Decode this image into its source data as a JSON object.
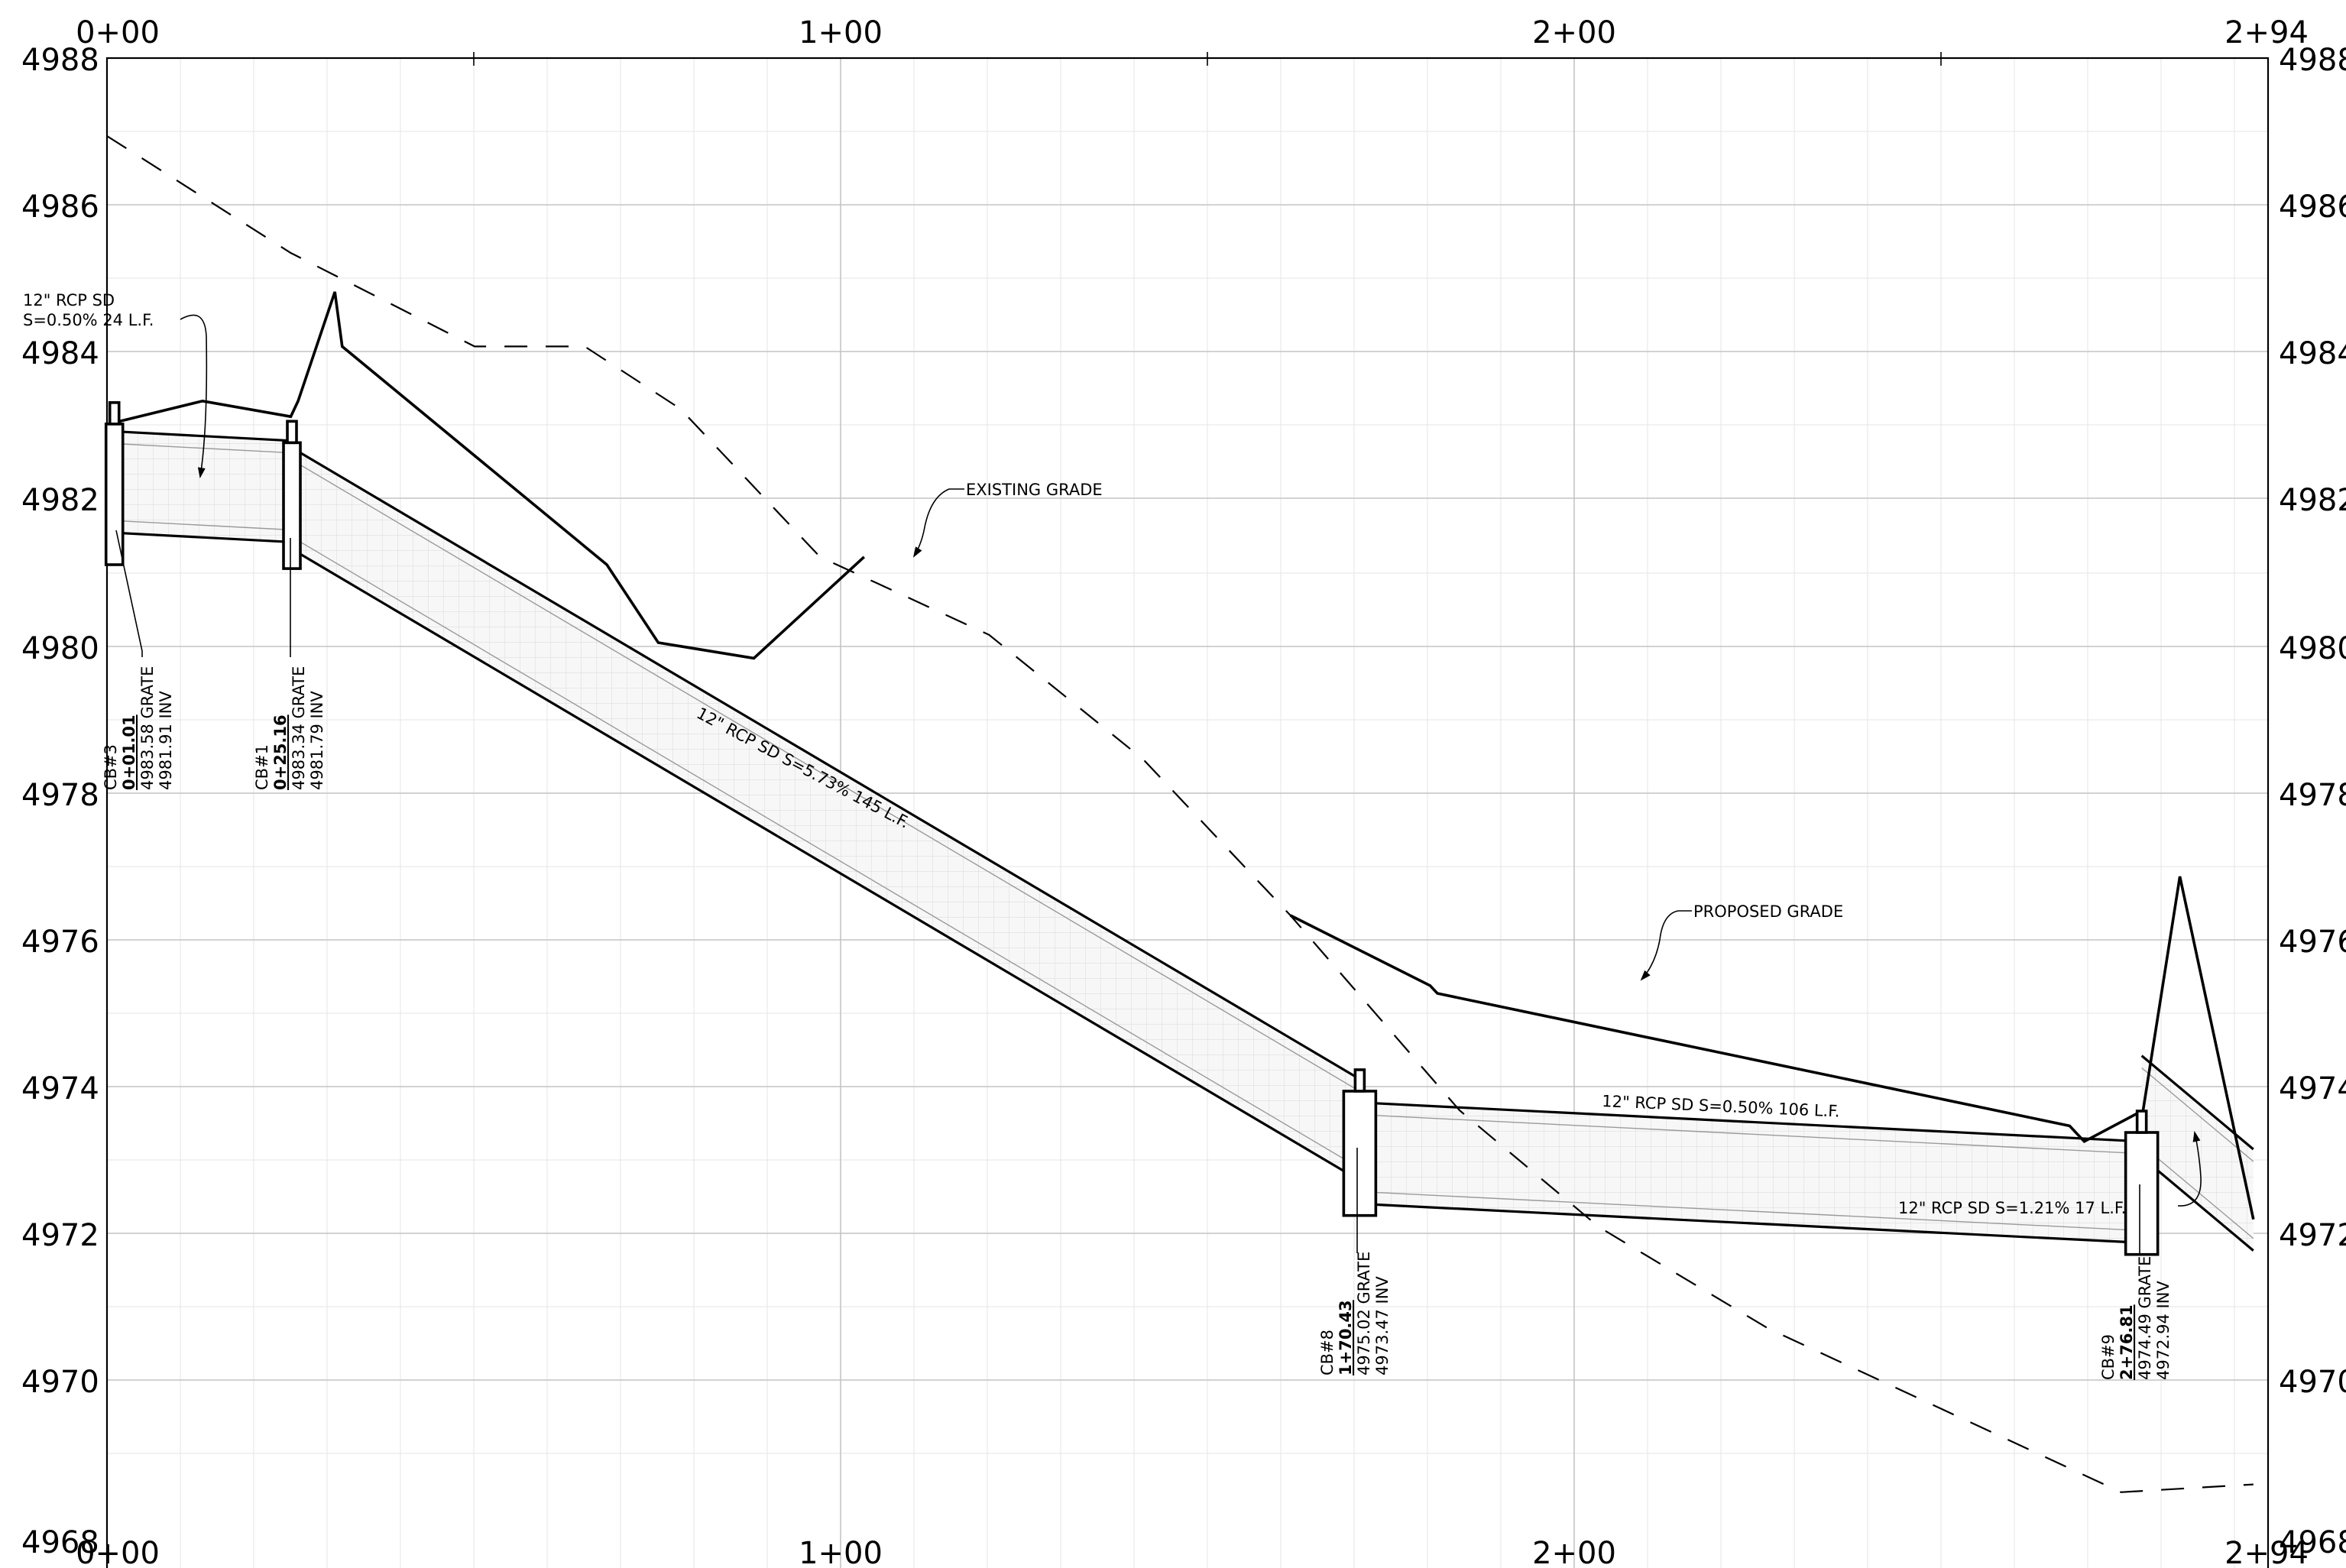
{
  "sheet": {
    "top_station_labels": [
      "0+00",
      "1+00",
      "2+00",
      "2+94"
    ],
    "bottom_station_labels": [
      "0+00",
      "1+00",
      "2+00",
      "2+94"
    ],
    "left_elevation_labels": [
      "4988",
      "4986",
      "4984",
      "4982",
      "4980",
      "4978",
      "4976",
      "4974",
      "4972",
      "4970",
      "4968"
    ],
    "right_elevation_labels": [
      "4988",
      "4986",
      "4984",
      "4982",
      "4980",
      "4978",
      "4976",
      "4974",
      "4972",
      "4970",
      "4968"
    ]
  },
  "profile": {
    "station_range": [
      0,
      294
    ],
    "elevation_range": [
      4968,
      4988
    ],
    "existing_grade_label": "EXISTING GRADE",
    "proposed_grade_label": "PROPOSED GRADE",
    "existing_grade": [
      [
        0,
        4987.0
      ],
      [
        25,
        4985.5
      ],
      [
        50,
        4984.3
      ],
      [
        65,
        4984.3
      ],
      [
        78,
        4983.5
      ],
      [
        97,
        4981.6
      ],
      [
        120,
        4980.6
      ],
      [
        141,
        4979.0
      ],
      [
        161,
        4977.0
      ],
      [
        184,
        4974.5
      ],
      [
        203,
        4973.0
      ],
      [
        226,
        4971.7
      ],
      [
        274,
        4969.6
      ],
      [
        292,
        4969.7
      ]
    ],
    "proposed_grade_a": [
      [
        0,
        4983.3
      ],
      [
        13,
        4983.6
      ],
      [
        25,
        4983.4
      ],
      [
        26,
        4983.6
      ],
      [
        31,
        4985.0
      ],
      [
        32,
        4984.3
      ],
      [
        68,
        4981.5
      ],
      [
        75,
        4980.5
      ],
      [
        88,
        4980.3
      ],
      [
        103,
        4981.6
      ]
    ],
    "proposed_grade_b": [
      [
        161,
        4977.0
      ],
      [
        180,
        4976.1
      ],
      [
        181,
        4976.0
      ],
      [
        267,
        4974.3
      ],
      [
        269,
        4974.1
      ],
      [
        277,
        4974.5
      ],
      [
        282,
        4977.5
      ],
      [
        292,
        4973.1
      ]
    ]
  },
  "pipes": [
    {
      "label": "12\" RCP SD\nS=0.50% 24 L.F.",
      "label_lines": [
        "12\" RCP SD",
        "S=0.50% 24 L.F."
      ],
      "from_station": 1.01,
      "to_station": 25.16,
      "invert_start": 4981.91,
      "invert_end": 4981.79
    },
    {
      "label": "12\" RCP SD S=5.73% 145 L.F.",
      "from_station": 25.16,
      "to_station": 170.43,
      "invert_start": 4981.7,
      "invert_end": 4973.6
    },
    {
      "label": "12\" RCP SD S=0.50% 106 L.F.",
      "from_station": 170.43,
      "to_station": 276.81,
      "invert_start": 4973.3,
      "invert_end": 4972.8
    },
    {
      "label": "12\" RCP SD S=1.21% 17 L.F.",
      "from_station": 276.81,
      "to_station": 292.0,
      "invert_start": 4973.9,
      "invert_end": 4972.7
    }
  ],
  "structures": [
    {
      "name": "CB#3",
      "station": "0+01.01",
      "grate": "4983.58 GRATE",
      "inv": "4981.91 INV",
      "station_value": 1.01,
      "top": 4983.58,
      "bottom": 4981.5
    },
    {
      "name": "CB#1",
      "station": "0+25.16",
      "grate": "4983.34 GRATE",
      "inv": "4981.79 INV",
      "station_value": 25.16,
      "top": 4983.34,
      "bottom": 4981.45
    },
    {
      "name": "CB#8",
      "station": "1+70.43",
      "grate": "4975.02 GRATE",
      "inv": "4973.47 INV",
      "station_value": 170.43,
      "top": 4975.02,
      "bottom": 4973.15
    },
    {
      "name": "CB#9",
      "station": "2+76.81",
      "grate": "4974.49 GRATE",
      "inv": "4972.94 INV",
      "station_value": 276.81,
      "top": 4974.49,
      "bottom": 4972.65
    }
  ]
}
